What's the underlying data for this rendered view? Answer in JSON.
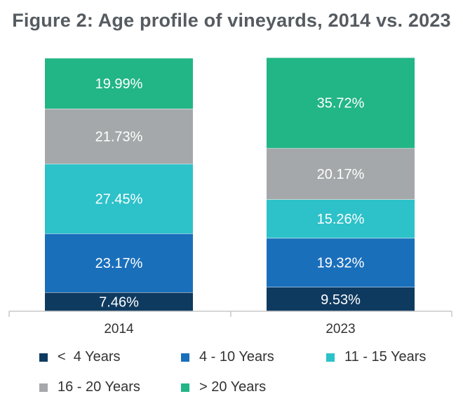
{
  "title": "Figure 2: Age profile of vineyards, 2014 vs. 2023",
  "chart_data": {
    "type": "bar",
    "stacked": true,
    "categories": [
      "2014",
      "2023"
    ],
    "series": [
      {
        "name": "<  4 Years",
        "color": "#0f3a60",
        "values": [
          7.46,
          9.53
        ],
        "labels": [
          "7.46%",
          "9.53%"
        ]
      },
      {
        "name": "4 - 10 Years",
        "color": "#1a6fbb",
        "values": [
          23.17,
          19.32
        ],
        "labels": [
          "23.17%",
          "19.32%"
        ]
      },
      {
        "name": "11 - 15 Years",
        "color": "#2dc1c9",
        "values": [
          27.45,
          15.26
        ],
        "labels": [
          "27.45%",
          "15.26%"
        ]
      },
      {
        "name": "16 - 20 Years",
        "color": "#a5a8aa",
        "values": [
          21.73,
          20.17
        ],
        "labels": [
          "21.73%",
          "20.17%"
        ]
      },
      {
        "name": "> 20 Years",
        "color": "#22b585",
        "values": [
          19.99,
          35.72
        ],
        "labels": [
          "19.99%",
          "35.72%"
        ]
      }
    ],
    "ylim": [
      0,
      100
    ],
    "grid": false,
    "legend_position": "bottom"
  }
}
